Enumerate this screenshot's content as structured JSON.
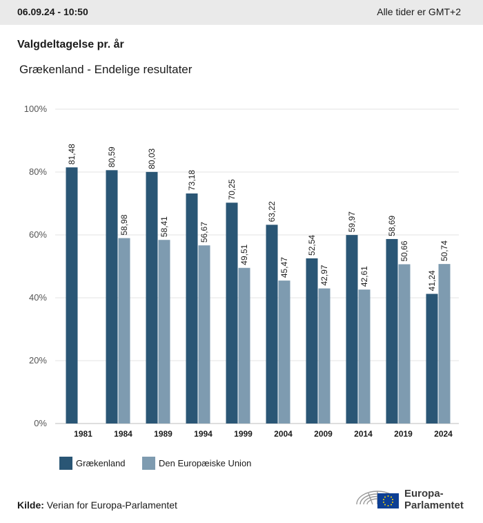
{
  "header": {
    "timestamp": "06.09.24 - 10:50",
    "timezone_note": "Alle tider er GMT+2"
  },
  "title": "Valgdeltagelse pr. år",
  "subtitle": "Grækenland - Endelige resultater",
  "chart_data": {
    "type": "bar",
    "categories": [
      "1981",
      "1984",
      "1989",
      "1994",
      "1999",
      "2004",
      "2009",
      "2014",
      "2019",
      "2024"
    ],
    "series": [
      {
        "name": "Grækenland",
        "color": "#2a5675",
        "values": [
          81.48,
          80.59,
          80.03,
          73.18,
          70.25,
          63.22,
          52.54,
          59.97,
          58.69,
          41.24
        ],
        "labels": [
          "81,48",
          "80,59",
          "80,03",
          "73,18",
          "70,25",
          "63,22",
          "52,54",
          "59,97",
          "58,69",
          "41,24"
        ]
      },
      {
        "name": "Den Europæiske Union",
        "color": "#7e9bb0",
        "values": [
          null,
          58.98,
          58.41,
          56.67,
          49.51,
          45.47,
          42.97,
          42.61,
          50.66,
          50.74
        ],
        "labels": [
          "",
          "58,98",
          "58,41",
          "56,67",
          "49,51",
          "45,47",
          "42,97",
          "42,61",
          "50,66",
          "50,74"
        ]
      }
    ],
    "ylim": [
      0,
      100
    ],
    "yticks": [
      0,
      20,
      40,
      60,
      80,
      100
    ],
    "ytick_labels": [
      "0%",
      "20%",
      "40%",
      "60%",
      "80%",
      "100%"
    ],
    "grid": true,
    "legend_position": "bottom-left"
  },
  "source": {
    "label": "Kilde:",
    "text": "Verian for Europa-Parlamentet"
  },
  "logo": {
    "line1": "Europa-",
    "line2": "Parlamentet",
    "flag_color": "#0d3f94",
    "star_color": "#ffdd00"
  }
}
